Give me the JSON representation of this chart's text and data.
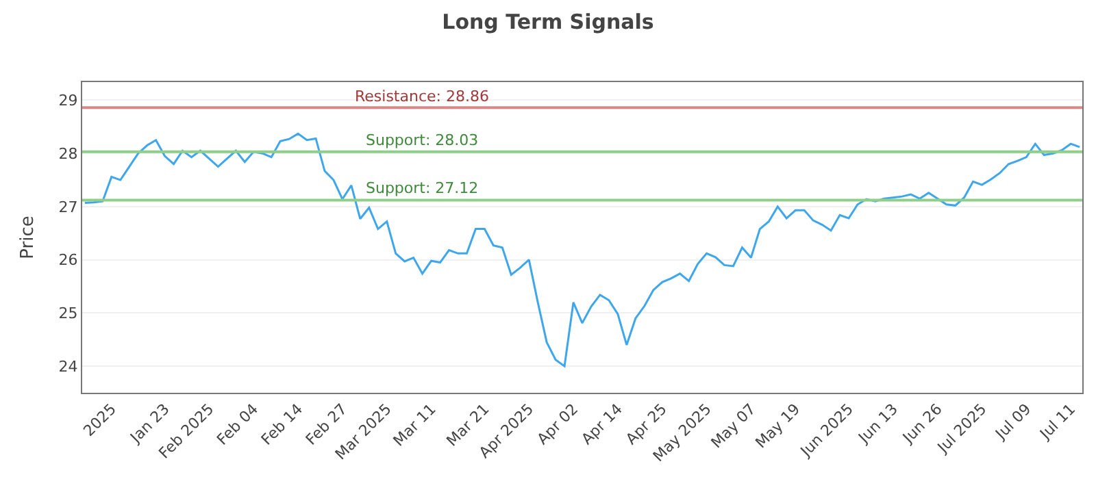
{
  "chart_data": {
    "type": "line",
    "title": "Long Term Signals",
    "ylabel": "Price",
    "categories": [
      null,
      null,
      null,
      "2025",
      null,
      null,
      null,
      null,
      null,
      "Jan 23",
      null,
      null,
      null,
      null,
      "Feb 2025",
      null,
      null,
      null,
      null,
      "Feb 04",
      null,
      null,
      null,
      null,
      "Feb 14",
      null,
      null,
      null,
      null,
      "Feb 27",
      null,
      null,
      null,
      null,
      "Mar 2025",
      null,
      null,
      null,
      null,
      "Mar 11",
      null,
      null,
      null,
      null,
      null,
      "Mar 21",
      null,
      null,
      null,
      null,
      "Apr 2025",
      null,
      null,
      null,
      null,
      "Apr 02",
      null,
      null,
      null,
      null,
      "Apr 14",
      null,
      null,
      null,
      null,
      "Apr 25",
      null,
      null,
      null,
      null,
      "May 2025",
      null,
      null,
      null,
      null,
      "May 07",
      null,
      null,
      null,
      null,
      "May 19",
      null,
      null,
      null,
      null,
      null,
      "Jun 2025",
      null,
      null,
      null,
      null,
      "Jun 13",
      null,
      null,
      null,
      null,
      "Jun 26",
      null,
      null,
      null,
      null,
      "Jul 2025",
      null,
      null,
      null,
      null,
      "Jul 09",
      null,
      null,
      null,
      null,
      "Jul 11",
      null
    ],
    "series": [
      {
        "color": "#3ea6ec",
        "values": [
          27.07,
          27.08,
          27.1,
          27.56,
          27.5,
          27.75,
          28.0,
          28.15,
          28.25,
          27.95,
          27.8,
          28.05,
          27.93,
          28.05,
          27.9,
          27.75,
          27.9,
          28.05,
          27.84,
          28.03,
          28.0,
          27.93,
          28.23,
          28.27,
          28.37,
          28.25,
          28.28,
          27.67,
          27.5,
          27.14,
          27.4,
          26.77,
          26.98,
          26.58,
          26.72,
          26.12,
          25.97,
          26.04,
          25.74,
          25.98,
          25.95,
          26.18,
          26.12,
          26.12,
          26.58,
          26.58,
          26.27,
          26.23,
          25.72,
          25.85,
          26.0,
          25.2,
          24.45,
          24.12,
          24.0,
          25.2,
          24.81,
          25.12,
          25.34,
          25.24,
          24.98,
          24.4,
          24.9,
          25.13,
          25.43,
          25.58,
          25.65,
          25.74,
          25.6,
          25.92,
          26.12,
          26.05,
          25.9,
          25.88,
          26.23,
          26.04,
          26.58,
          26.72,
          27.0,
          26.78,
          26.93,
          26.93,
          26.74,
          26.66,
          26.55,
          26.84,
          26.78,
          27.04,
          27.14,
          27.1,
          27.15,
          27.17,
          27.19,
          27.23,
          27.15,
          27.26,
          27.15,
          27.04,
          27.02,
          27.17,
          27.47,
          27.41,
          27.51,
          27.63,
          27.8,
          27.86,
          27.93,
          28.18,
          27.97,
          28.0,
          28.06,
          28.18,
          28.12
        ]
      }
    ],
    "ylim": [
      23.5,
      29.34
    ],
    "yticks": [
      24,
      25,
      26,
      27,
      28,
      29
    ],
    "grid": "y",
    "marker": "none",
    "line_style": "solid",
    "ref_lines": [
      {
        "axis": "y",
        "value": 28.86,
        "label": "Resistance: 28.86",
        "color": "#e08585"
      },
      {
        "axis": "y",
        "value": 28.03,
        "label": "Support: 28.03",
        "color": "#8fcf8a"
      },
      {
        "axis": "y",
        "value": 27.12,
        "label": "Support: 27.12",
        "color": "#8fcf8a"
      }
    ]
  }
}
